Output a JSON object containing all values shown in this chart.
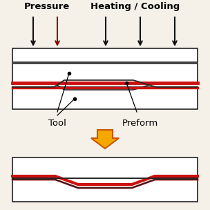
{
  "bg_color": "#f5f0e8",
  "title_pressure": "Pressure",
  "title_heating": "Heating / Cooling",
  "label_tool": "Tool",
  "label_preform": "Preform",
  "title_fontsize": 9.5,
  "label_fontsize": 9.5,
  "arrow_color": "#111111",
  "red_color": "#cc1111",
  "dark_red": "#880000",
  "orange_fill": "#f5a800",
  "orange_edge": "#cc5500",
  "border_color": "#222222",
  "lw": 1.2
}
